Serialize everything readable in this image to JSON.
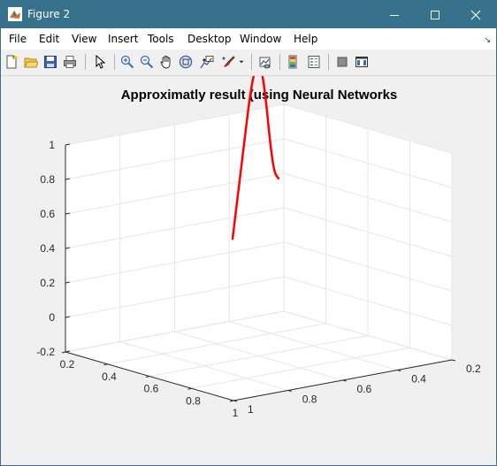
{
  "window": {
    "title": "Figure 2",
    "buttons": {
      "minimize": "minimize",
      "maximize": "maximize",
      "close": "close"
    }
  },
  "menu": [
    "File",
    "Edit",
    "View",
    "Insert",
    "Tools",
    "Desktop",
    "Window",
    "Help"
  ],
  "toolbar": [
    "new-figure-icon",
    "open-file-icon",
    "save-icon",
    "print-icon",
    "pointer-icon",
    "zoom-in-icon",
    "zoom-out-icon",
    "pan-icon",
    "rotate-3d-icon",
    "data-cursor-icon",
    "brush-icon",
    "link-plot-icon",
    "colorbar-icon",
    "legend-icon",
    "hide-plot-tools-icon",
    "show-plot-tools-icon"
  ],
  "colors": {
    "titlebar": "#36728c",
    "line": "#ff0000",
    "axes_background": "#ffffff",
    "figure_background": "#f0f0f0",
    "grid": "#e6e6e6"
  },
  "chart_data": {
    "type": "line",
    "title": "Approximatly result (using Neural Networks",
    "projection": "3d",
    "grid": true,
    "xlim": [
      0.2,
      1
    ],
    "ylim": [
      0.2,
      1
    ],
    "zlim": [
      -0.2,
      1
    ],
    "xticks": [
      "0.2",
      "0.4",
      "0.6",
      "0.8",
      "1"
    ],
    "yticks": [
      "0.2",
      "0.4",
      "0.6",
      "0.8",
      "1"
    ],
    "zticks": [
      "-0.2",
      "0",
      "0.2",
      "0.4",
      "0.6",
      "0.8",
      "1"
    ],
    "series": [
      {
        "color": "#ff0000",
        "points": [
          [
            0.2,
            0.2,
            -0.2
          ],
          [
            0.2,
            0.2,
            0.0
          ],
          [
            0.2,
            0.2,
            0.2
          ],
          [
            0.2,
            0.2,
            0.4
          ],
          [
            0.2,
            0.2,
            0.6
          ],
          [
            0.2,
            0.2,
            0.75
          ],
          [
            0.2,
            0.2,
            0.81
          ],
          [
            0.2,
            0.2,
            0.78
          ],
          [
            0.2,
            0.2,
            0.6
          ],
          [
            0.2,
            0.2,
            0.35
          ],
          [
            0.2,
            0.2,
            0.18
          ],
          [
            0.2,
            0.2,
            0.15
          ]
        ]
      }
    ]
  }
}
